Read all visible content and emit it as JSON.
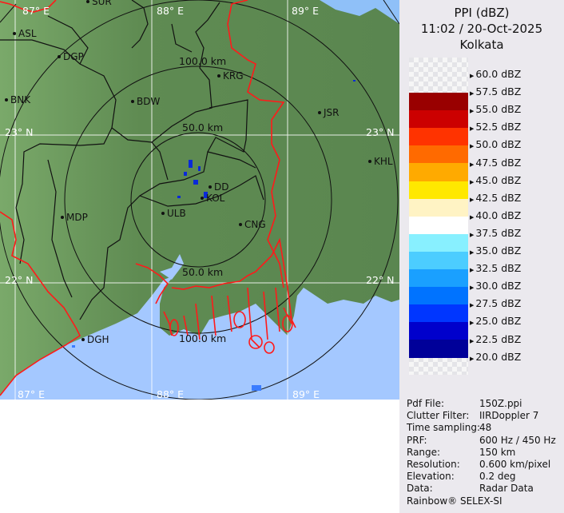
{
  "header": {
    "product": "PPI (dBZ)",
    "datetime": "11:02 / 20-Oct-2025",
    "station": "Kolkata"
  },
  "colorbar": {
    "labels": [
      "60.0 dBZ",
      "57.5 dBZ",
      "55.0 dBZ",
      "52.5 dBZ",
      "50.0 dBZ",
      "47.5 dBZ",
      "45.0 dBZ",
      "42.5 dBZ",
      "40.0 dBZ",
      "37.5 dBZ",
      "35.0 dBZ",
      "32.5 dBZ",
      "30.0 dBZ",
      "27.5 dBZ",
      "25.0 dBZ",
      "22.5 dBZ",
      "20.0 dBZ"
    ],
    "colors": [
      "#990000",
      "#cc0000",
      "#ff3300",
      "#ff6a00",
      "#ffaa00",
      "#ffe800",
      "#fff3c4",
      "#ffffff",
      "#88f0ff",
      "#4ccdff",
      "#1aa0ff",
      "#0073ff",
      "#0036ff",
      "#0000cc",
      "#000099"
    ]
  },
  "info": [
    {
      "key": "Pdf File:",
      "value": "150Z.ppi"
    },
    {
      "key": "Clutter Filter:",
      "value": "IIRDoppler 7"
    },
    {
      "key": "Time sampling:",
      "value": "48"
    },
    {
      "key": "PRF:",
      "value": "600 Hz / 450 Hz"
    },
    {
      "key": "Range:",
      "value": "150 km"
    },
    {
      "key": "Resolution:",
      "value": "0.600 km/pixel"
    },
    {
      "key": "Elevation:",
      "value": "0.2 deg"
    },
    {
      "key": "Data:",
      "value": "Radar Data"
    }
  ],
  "footer": "Rainbow® SELEX-SI",
  "map": {
    "grid_labels": {
      "lon_87": "87° E",
      "lon_88": "88° E",
      "lon_89": "89° E",
      "lat_23": "23° N",
      "lat_22": "22° N"
    },
    "range_labels": {
      "r50": "50.0 km",
      "r100": "100.0 km"
    },
    "cities": [
      "SUR",
      "ASL",
      "DGP",
      "BNK",
      "BDW",
      "KRG",
      "JSR",
      "KHL",
      "DD",
      "KOL",
      "ULB",
      "CNG",
      "MDP",
      "DGH"
    ],
    "colors": {
      "land": "#5e8a50",
      "sea": "#a4c8ff",
      "border": "#ff1a1a",
      "district": "#111111"
    }
  }
}
